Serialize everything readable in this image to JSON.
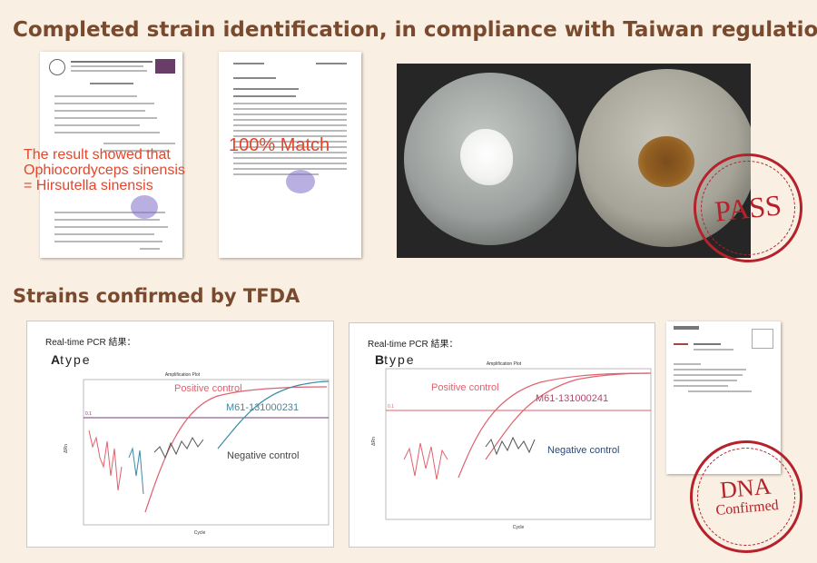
{
  "headings": {
    "top": "Completed strain identification, in compliance with Taiwan regulations.",
    "middle": "Strains confirmed by TFDA"
  },
  "notes": {
    "identification_lines": [
      "The result showed that",
      "Ophiocordyceps sinensis",
      "= Hirsutella sinensis"
    ],
    "match": "100% Match"
  },
  "stamps": {
    "pass": "PASS",
    "dna_lines": [
      "DNA",
      "Confirmed"
    ]
  },
  "pcr_title": "Real-time PCR 結果：",
  "amplification_plot": "Amplification Plot",
  "axis": {
    "x_label": "Cycle",
    "y_label": "ΔRn"
  },
  "panel_a": {
    "type_letter": "A",
    "type_word": "type",
    "positive_label": "Positive control",
    "sample_label": "M61-131000231",
    "negative_label": "Negative control",
    "threshold_label": "0.1"
  },
  "panel_b": {
    "type_letter": "B",
    "type_word": "type",
    "positive_label": "Positive control",
    "sample_label": "M61-131000241",
    "negative_label": "Negative control",
    "threshold_label": "0.1"
  },
  "colors": {
    "heading": "#7a4a2e",
    "note_red": "#e2462c",
    "stamp_red": "#b5222b",
    "positive_curve": "#e0616f",
    "sample_curve_a": "#3b8aa6",
    "negative_curve": "#555555",
    "threshold": "#7a3a7a"
  }
}
